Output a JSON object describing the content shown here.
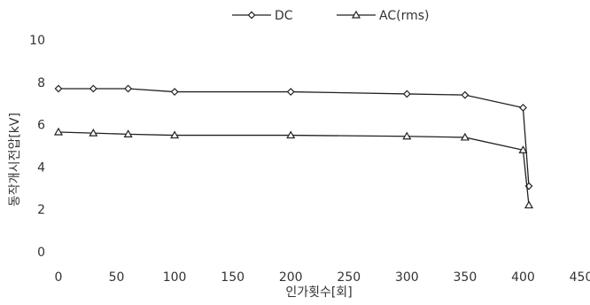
{
  "chart_data": {
    "type": "line",
    "xlabel": "인가횟수[회]",
    "ylabel": "동작개시전압[kV]",
    "xlim": [
      0,
      450
    ],
    "ylim": [
      0,
      10
    ],
    "x_ticks": [
      0,
      50,
      100,
      150,
      200,
      250,
      300,
      350,
      400,
      450
    ],
    "y_ticks": [
      0,
      2,
      4,
      6,
      8,
      10
    ],
    "grid": false,
    "legend_position": "top",
    "series": [
      {
        "name": "DC",
        "marker": "diamond",
        "points": [
          {
            "x": 0,
            "y": 7.7
          },
          {
            "x": 30,
            "y": 7.7
          },
          {
            "x": 60,
            "y": 7.7
          },
          {
            "x": 100,
            "y": 7.55
          },
          {
            "x": 200,
            "y": 7.55
          },
          {
            "x": 300,
            "y": 7.45
          },
          {
            "x": 350,
            "y": 7.4
          },
          {
            "x": 400,
            "y": 6.8
          },
          {
            "x": 405,
            "y": 3.1
          }
        ]
      },
      {
        "name": "AC(rms)",
        "marker": "triangle",
        "points": [
          {
            "x": 0,
            "y": 5.65
          },
          {
            "x": 30,
            "y": 5.6
          },
          {
            "x": 60,
            "y": 5.55
          },
          {
            "x": 100,
            "y": 5.5
          },
          {
            "x": 200,
            "y": 5.5
          },
          {
            "x": 300,
            "y": 5.45
          },
          {
            "x": 350,
            "y": 5.4
          },
          {
            "x": 400,
            "y": 4.8
          },
          {
            "x": 405,
            "y": 2.2
          }
        ]
      }
    ]
  }
}
